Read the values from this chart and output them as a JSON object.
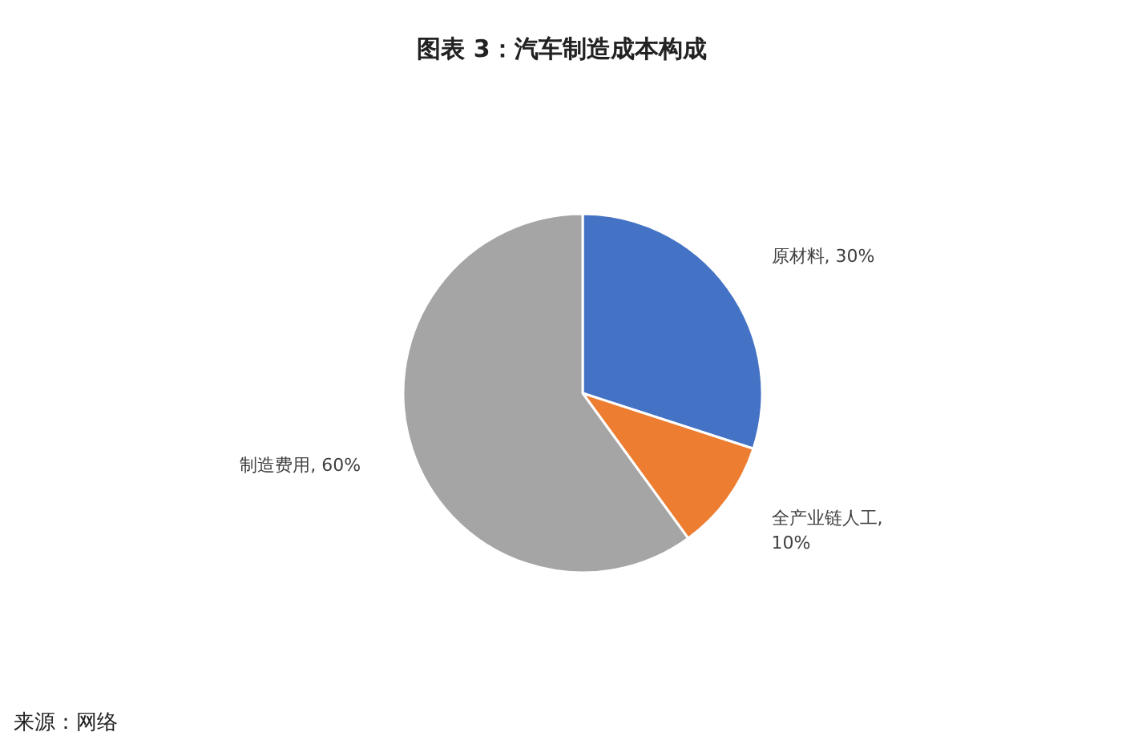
{
  "chart_data": {
    "type": "pie",
    "title": "图表 3：汽车制造成本构成",
    "categories": [
      "原材料",
      "全产业链人工",
      "制造费用"
    ],
    "values": [
      30,
      10,
      60
    ],
    "value_labels": [
      ", 30%",
      ", 10%",
      ", 60%"
    ],
    "colors": [
      "#4472c4",
      "#ed7d31",
      "#a5a5a5"
    ],
    "annotations": [
      "来源：网络"
    ]
  }
}
